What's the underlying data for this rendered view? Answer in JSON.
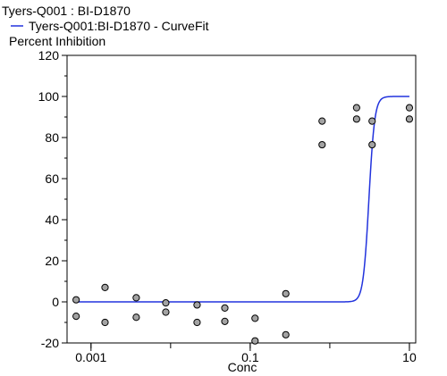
{
  "chart_data": {
    "type": "scatter",
    "title": "Tyers-Q001 : BI-D1870",
    "ylabel": "Percent Inhibition",
    "xlabel": "Conc",
    "x_scale": "log",
    "xlim": [
      0.0005,
      12
    ],
    "ylim": [
      -20,
      120
    ],
    "x_ticks": [
      0.001,
      0.1,
      10
    ],
    "x_tick_labels": [
      "0.001",
      "0.1",
      "10"
    ],
    "y_ticks": [
      -20,
      0,
      20,
      40,
      60,
      80,
      100,
      120
    ],
    "y_tick_labels": [
      "-20",
      "0",
      "20",
      "40",
      "60",
      "80",
      "100",
      "120"
    ],
    "grid": false,
    "legend": {
      "position": "top-left",
      "entries": [
        {
          "label": "Tyers-Q001:BI-D1870 - CurveFit",
          "color": "#2233dd"
        }
      ]
    },
    "points": {
      "name": "Tyers-Q001:BI-D1870",
      "fill": "#a3a3a3",
      "stroke": "#000000",
      "x": [
        0.00065,
        0.00065,
        0.0015,
        0.0015,
        0.0037,
        0.0037,
        0.0087,
        0.0087,
        0.0215,
        0.0215,
        0.048,
        0.048,
        0.115,
        0.115,
        0.28,
        0.28,
        0.8,
        0.8,
        2.17,
        2.17,
        3.4,
        3.4,
        10.0,
        10.0
      ],
      "y": [
        1,
        -7,
        7,
        -10,
        2,
        -7.5,
        -0.5,
        -5,
        -1.5,
        -10,
        -3,
        -9.5,
        -8,
        -19,
        4,
        -16,
        76.5,
        88,
        89,
        94.5,
        76.5,
        88,
        89,
        94.5
      ]
    },
    "fit_curve": {
      "name": "Tyers-Q001:BI-D1870 - CurveFit",
      "color": "#2233dd",
      "bottom": 0,
      "top": 100,
      "ec50": 3.1,
      "hill": 12,
      "x_range": [
        0.00065,
        10
      ]
    }
  }
}
